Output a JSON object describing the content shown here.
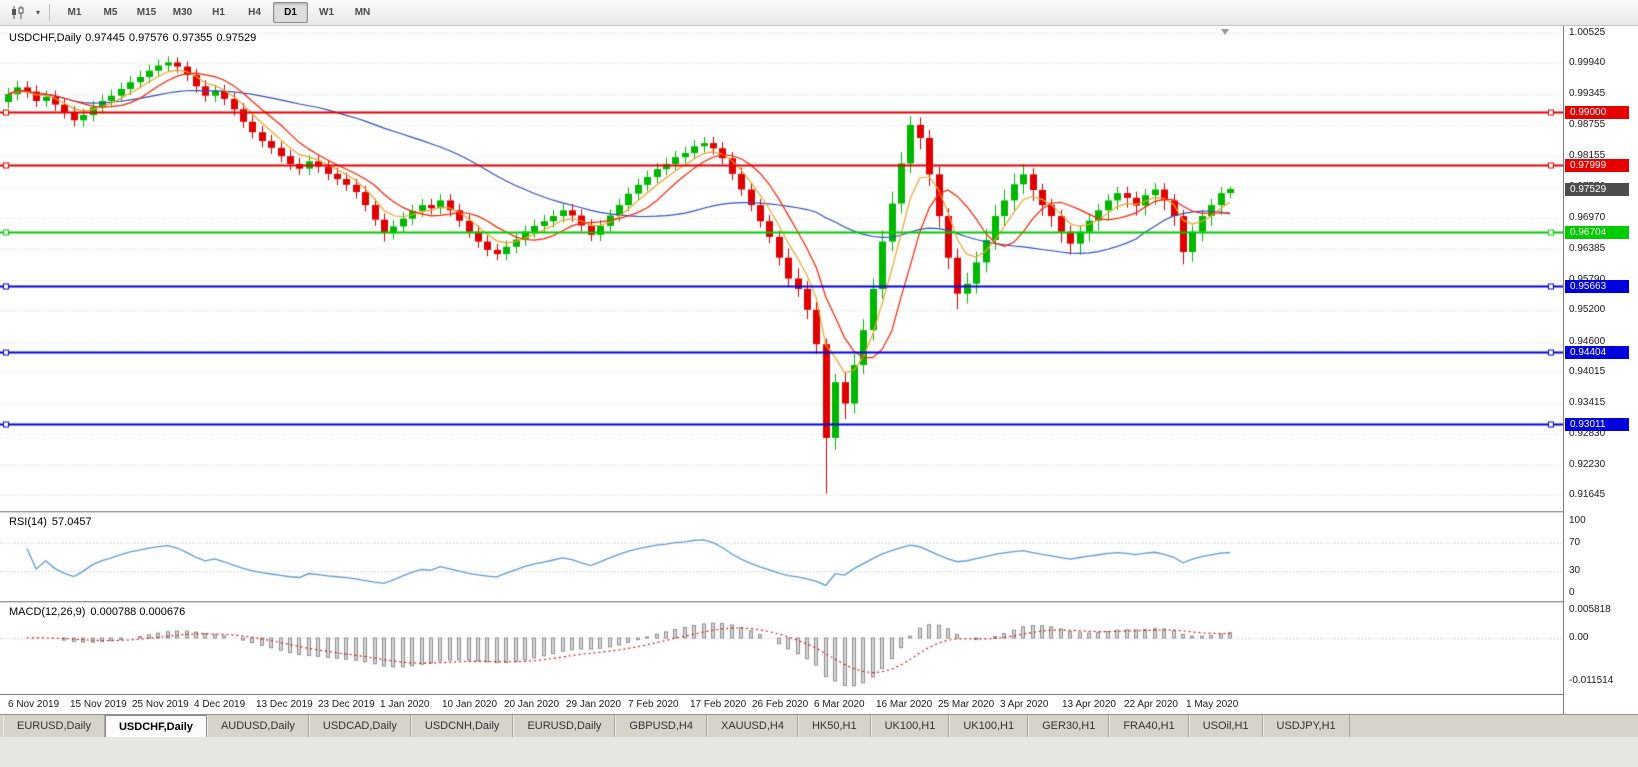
{
  "toolbar": {
    "timeframes": [
      "M1",
      "M5",
      "M15",
      "M30",
      "H1",
      "H4",
      "D1",
      "W1",
      "MN"
    ],
    "active_timeframe": "D1",
    "chart_type_icon": "candlestick-chart"
  },
  "chart": {
    "symbol": "USDCHF,Daily",
    "open": "0.97445",
    "high": "0.97576",
    "low": "0.97355",
    "close": "0.97529"
  },
  "price_axis": {
    "labels": [
      "1.00525",
      "0.99940",
      "0.99345",
      "0.98755",
      "0.98155",
      "0.97570",
      "0.96970",
      "0.96385",
      "0.95790",
      "0.95200",
      "0.94600",
      "0.94015",
      "0.93415",
      "0.92830",
      "0.92230",
      "0.91645"
    ],
    "current_price": {
      "label": "0.97529",
      "bg": "#4d4d4d"
    }
  },
  "levels": [
    {
      "price": 0.99,
      "label": "0.99000",
      "color": "#e60000",
      "width": 2
    },
    {
      "price": 0.97999,
      "label": "0.97999",
      "color": "#e60000",
      "width": 2
    },
    {
      "price": 0.96704,
      "label": "0.96704",
      "color": "#00cc00",
      "width": 2
    },
    {
      "price": 0.95663,
      "label": "0.95663",
      "color": "#0000dd",
      "width": 2
    },
    {
      "price": 0.94404,
      "label": "0.94404",
      "color": "#0000dd",
      "width": 2
    },
    {
      "price": 0.93011,
      "label": "0.93011",
      "color": "#0000dd",
      "width": 2
    }
  ],
  "rsi": {
    "name": "RSI(14)",
    "value": "57.0457",
    "period": 14,
    "axis_labels": [
      "100",
      "70",
      "30",
      "0"
    ],
    "guide_levels": [
      70,
      30
    ],
    "color": "#5b9bd5"
  },
  "macd": {
    "name": "MACD(12,26,9)",
    "values": "0.000788 0.000676",
    "fast": 12,
    "slow": 26,
    "signal": 9,
    "axis_labels": [
      "0.005818",
      "0.00",
      "-0.011514"
    ],
    "hist_fill": "#d6d6d6",
    "hist_stroke": "#8f8f8f",
    "signal_color": "#e00000"
  },
  "time_axis": [
    "6 Nov 2019",
    "15 Nov 2019",
    "25 Nov 2019",
    "4 Dec 2019",
    "13 Dec 2019",
    "23 Dec 2019",
    "1 Jan 2020",
    "10 Jan 2020",
    "20 Jan 2020",
    "29 Jan 2020",
    "7 Feb 2020",
    "17 Feb 2020",
    "26 Feb 2020",
    "6 Mar 2020",
    "16 Mar 2020",
    "25 Mar 2020",
    "3 Apr 2020",
    "13 Apr 2020",
    "22 Apr 2020",
    "1 May 2020"
  ],
  "tabs": {
    "active_index": 1,
    "items": [
      "EURUSD,Daily",
      "USDCHF,Daily",
      "AUDUSD,Daily",
      "USDCAD,Daily",
      "USDCNH,Daily",
      "EURUSD,Daily",
      "GBPUSD,H4",
      "XAUUSD,H4",
      "HK50,H1",
      "UK100,H1",
      "UK100,H1",
      "GER30,H1",
      "FRA40,H1",
      "USOil,H1",
      "USDJPY,H1"
    ]
  },
  "chart_data": {
    "type": "candlestick",
    "symbol": "USDCHF",
    "timeframe": "Daily",
    "ylim": [
      0.91645,
      1.00525
    ],
    "colors": {
      "bull": "#00b700",
      "bear": "#e00000",
      "grid": "#dcdcdc"
    },
    "overlays": [
      {
        "name": "ma-slow",
        "type": "sma",
        "period": 34,
        "color": "#3050c0"
      },
      {
        "name": "ma-mid",
        "type": "ema",
        "period": 5,
        "color": "#efa32a"
      },
      {
        "name": "ma-fast",
        "type": "sma",
        "period": 8,
        "color": "#ff2000"
      }
    ],
    "candles": [
      [
        0.992,
        0.9947,
        0.9908,
        0.9935
      ],
      [
        0.9935,
        0.996,
        0.9923,
        0.9948
      ],
      [
        0.9948,
        0.996,
        0.9928,
        0.994
      ],
      [
        0.994,
        0.9952,
        0.991,
        0.9922
      ],
      [
        0.9922,
        0.9942,
        0.991,
        0.993
      ],
      [
        0.993,
        0.9942,
        0.9903,
        0.9915
      ],
      [
        0.9915,
        0.9927,
        0.9888,
        0.99
      ],
      [
        0.99,
        0.9912,
        0.9873,
        0.9885
      ],
      [
        0.9885,
        0.9907,
        0.9873,
        0.9895
      ],
      [
        0.9895,
        0.9922,
        0.9883,
        0.991
      ],
      [
        0.991,
        0.9934,
        0.9898,
        0.9922
      ],
      [
        0.9922,
        0.9944,
        0.991,
        0.9932
      ],
      [
        0.9932,
        0.9957,
        0.992,
        0.9945
      ],
      [
        0.9945,
        0.997,
        0.9933,
        0.9958
      ],
      [
        0.9958,
        0.998,
        0.9946,
        0.9968
      ],
      [
        0.9968,
        0.9992,
        0.9956,
        0.998
      ],
      [
        0.998,
        1.0002,
        0.9968,
        0.999
      ],
      [
        0.999,
        1.0008,
        0.9978,
        0.9996
      ],
      [
        0.9996,
        1.0006,
        0.9976,
        0.9988
      ],
      [
        0.9988,
        0.9998,
        0.996,
        0.9972
      ],
      [
        0.9972,
        0.9984,
        0.9938,
        0.995
      ],
      [
        0.995,
        0.9962,
        0.992,
        0.9932
      ],
      [
        0.9932,
        0.9953,
        0.992,
        0.9941
      ],
      [
        0.9941,
        0.9953,
        0.9914,
        0.9926
      ],
      [
        0.9926,
        0.9938,
        0.9894,
        0.9906
      ],
      [
        0.9906,
        0.9918,
        0.987,
        0.9882
      ],
      [
        0.9882,
        0.9894,
        0.985,
        0.9862
      ],
      [
        0.9862,
        0.9874,
        0.9833,
        0.9845
      ],
      [
        0.9845,
        0.9857,
        0.982,
        0.9832
      ],
      [
        0.9832,
        0.9844,
        0.9804,
        0.9816
      ],
      [
        0.9816,
        0.9828,
        0.9789,
        0.9801
      ],
      [
        0.9801,
        0.9813,
        0.978,
        0.9792
      ],
      [
        0.9792,
        0.9818,
        0.978,
        0.9806
      ],
      [
        0.9806,
        0.9818,
        0.9784,
        0.9796
      ],
      [
        0.9796,
        0.9808,
        0.977,
        0.9782
      ],
      [
        0.9782,
        0.9794,
        0.976,
        0.9772
      ],
      [
        0.9772,
        0.9784,
        0.9749,
        0.9761
      ],
      [
        0.9761,
        0.9773,
        0.9735,
        0.9747
      ],
      [
        0.9747,
        0.9759,
        0.971,
        0.9722
      ],
      [
        0.9722,
        0.9734,
        0.9682,
        0.9694
      ],
      [
        0.9694,
        0.9706,
        0.9652,
        0.9668
      ],
      [
        0.9668,
        0.9693,
        0.9656,
        0.9681
      ],
      [
        0.9681,
        0.9708,
        0.9669,
        0.9696
      ],
      [
        0.9696,
        0.9723,
        0.9684,
        0.9711
      ],
      [
        0.9711,
        0.9734,
        0.9699,
        0.9722
      ],
      [
        0.9722,
        0.9734,
        0.9704,
        0.9716
      ],
      [
        0.9716,
        0.9743,
        0.9704,
        0.9731
      ],
      [
        0.9731,
        0.9743,
        0.97,
        0.9712
      ],
      [
        0.9712,
        0.9724,
        0.968,
        0.9692
      ],
      [
        0.9692,
        0.9704,
        0.9659,
        0.9671
      ],
      [
        0.9671,
        0.9683,
        0.964,
        0.9652
      ],
      [
        0.9652,
        0.9664,
        0.9624,
        0.9636
      ],
      [
        0.9636,
        0.9648,
        0.9616,
        0.9628
      ],
      [
        0.9628,
        0.9654,
        0.9616,
        0.9642
      ],
      [
        0.9642,
        0.9668,
        0.963,
        0.9656
      ],
      [
        0.9656,
        0.9683,
        0.9644,
        0.9671
      ],
      [
        0.9671,
        0.9694,
        0.9659,
        0.9682
      ],
      [
        0.9682,
        0.9703,
        0.967,
        0.9691
      ],
      [
        0.9691,
        0.9713,
        0.9679,
        0.9701
      ],
      [
        0.9701,
        0.9724,
        0.9689,
        0.9712
      ],
      [
        0.9712,
        0.9724,
        0.969,
        0.9702
      ],
      [
        0.9702,
        0.9714,
        0.9671,
        0.9683
      ],
      [
        0.9683,
        0.9695,
        0.9653,
        0.9665
      ],
      [
        0.9665,
        0.9694,
        0.9653,
        0.9682
      ],
      [
        0.9682,
        0.9714,
        0.967,
        0.9702
      ],
      [
        0.9702,
        0.9734,
        0.969,
        0.9722
      ],
      [
        0.9722,
        0.9756,
        0.971,
        0.9744
      ],
      [
        0.9744,
        0.9773,
        0.9732,
        0.9761
      ],
      [
        0.9761,
        0.9788,
        0.9749,
        0.9776
      ],
      [
        0.9776,
        0.9803,
        0.9764,
        0.9791
      ],
      [
        0.9791,
        0.9813,
        0.9779,
        0.9801
      ],
      [
        0.9801,
        0.9826,
        0.9789,
        0.9814
      ],
      [
        0.9814,
        0.9834,
        0.9802,
        0.9822
      ],
      [
        0.9822,
        0.9847,
        0.981,
        0.9835
      ],
      [
        0.9835,
        0.9853,
        0.9823,
        0.9841
      ],
      [
        0.9841,
        0.9853,
        0.9819,
        0.9831
      ],
      [
        0.9831,
        0.9843,
        0.98,
        0.9812
      ],
      [
        0.9812,
        0.9824,
        0.977,
        0.9782
      ],
      [
        0.9782,
        0.9794,
        0.974,
        0.9752
      ],
      [
        0.9752,
        0.9764,
        0.971,
        0.9722
      ],
      [
        0.9722,
        0.9734,
        0.9679,
        0.9691
      ],
      [
        0.9691,
        0.9703,
        0.9649,
        0.9661
      ],
      [
        0.9661,
        0.9673,
        0.9606,
        0.9621
      ],
      [
        0.9621,
        0.9639,
        0.9566,
        0.9581
      ],
      [
        0.9581,
        0.9601,
        0.9546,
        0.9561
      ],
      [
        0.9561,
        0.9576,
        0.9503,
        0.9521
      ],
      [
        0.9521,
        0.9536,
        0.9436,
        0.9455
      ],
      [
        0.9455,
        0.9466,
        0.9168,
        0.9275
      ],
      [
        0.9275,
        0.9398,
        0.9252,
        0.9382
      ],
      [
        0.9382,
        0.9401,
        0.9311,
        0.9341
      ],
      [
        0.9341,
        0.9436,
        0.9322,
        0.9415
      ],
      [
        0.9415,
        0.9503,
        0.9398,
        0.9482
      ],
      [
        0.9482,
        0.9581,
        0.9462,
        0.9561
      ],
      [
        0.9561,
        0.9673,
        0.9542,
        0.9652
      ],
      [
        0.9652,
        0.9748,
        0.9633,
        0.9725
      ],
      [
        0.9725,
        0.9824,
        0.9706,
        0.9802
      ],
      [
        0.9802,
        0.9893,
        0.9783,
        0.9876
      ],
      [
        0.9876,
        0.989,
        0.9829,
        0.9851
      ],
      [
        0.9851,
        0.9866,
        0.9759,
        0.9781
      ],
      [
        0.9781,
        0.9796,
        0.9679,
        0.9701
      ],
      [
        0.9701,
        0.9716,
        0.9599,
        0.9621
      ],
      [
        0.9621,
        0.9639,
        0.9522,
        0.9552
      ],
      [
        0.9552,
        0.9592,
        0.9533,
        0.9571
      ],
      [
        0.9571,
        0.9633,
        0.9552,
        0.9612
      ],
      [
        0.9612,
        0.9676,
        0.9593,
        0.9655
      ],
      [
        0.9655,
        0.9722,
        0.9636,
        0.9701
      ],
      [
        0.9701,
        0.9752,
        0.9682,
        0.9731
      ],
      [
        0.9731,
        0.9783,
        0.9712,
        0.9762
      ],
      [
        0.9762,
        0.9801,
        0.9743,
        0.9781
      ],
      [
        0.9781,
        0.9793,
        0.973,
        0.9751
      ],
      [
        0.9751,
        0.9763,
        0.9701,
        0.9722
      ],
      [
        0.9722,
        0.9734,
        0.968,
        0.9701
      ],
      [
        0.9701,
        0.9713,
        0.965,
        0.9671
      ],
      [
        0.9671,
        0.9683,
        0.9627,
        0.9648
      ],
      [
        0.9648,
        0.9683,
        0.9627,
        0.9671
      ],
      [
        0.9671,
        0.9704,
        0.9652,
        0.9692
      ],
      [
        0.9692,
        0.9724,
        0.9673,
        0.9712
      ],
      [
        0.9712,
        0.9743,
        0.9693,
        0.9731
      ],
      [
        0.9731,
        0.9757,
        0.9712,
        0.9745
      ],
      [
        0.9745,
        0.9757,
        0.9717,
        0.9736
      ],
      [
        0.9736,
        0.9748,
        0.9702,
        0.9721
      ],
      [
        0.9721,
        0.9753,
        0.9702,
        0.9741
      ],
      [
        0.9741,
        0.9764,
        0.9722,
        0.9752
      ],
      [
        0.9752,
        0.9764,
        0.9712,
        0.9731
      ],
      [
        0.9731,
        0.9743,
        0.9682,
        0.9701
      ],
      [
        0.9701,
        0.9713,
        0.9608,
        0.9632
      ],
      [
        0.9632,
        0.9683,
        0.9613,
        0.9671
      ],
      [
        0.9671,
        0.9713,
        0.9652,
        0.9701
      ],
      [
        0.9701,
        0.9734,
        0.9682,
        0.9722
      ],
      [
        0.9722,
        0.9757,
        0.9703,
        0.9745
      ],
      [
        0.9745,
        0.9758,
        0.9735,
        0.9753
      ]
    ]
  }
}
